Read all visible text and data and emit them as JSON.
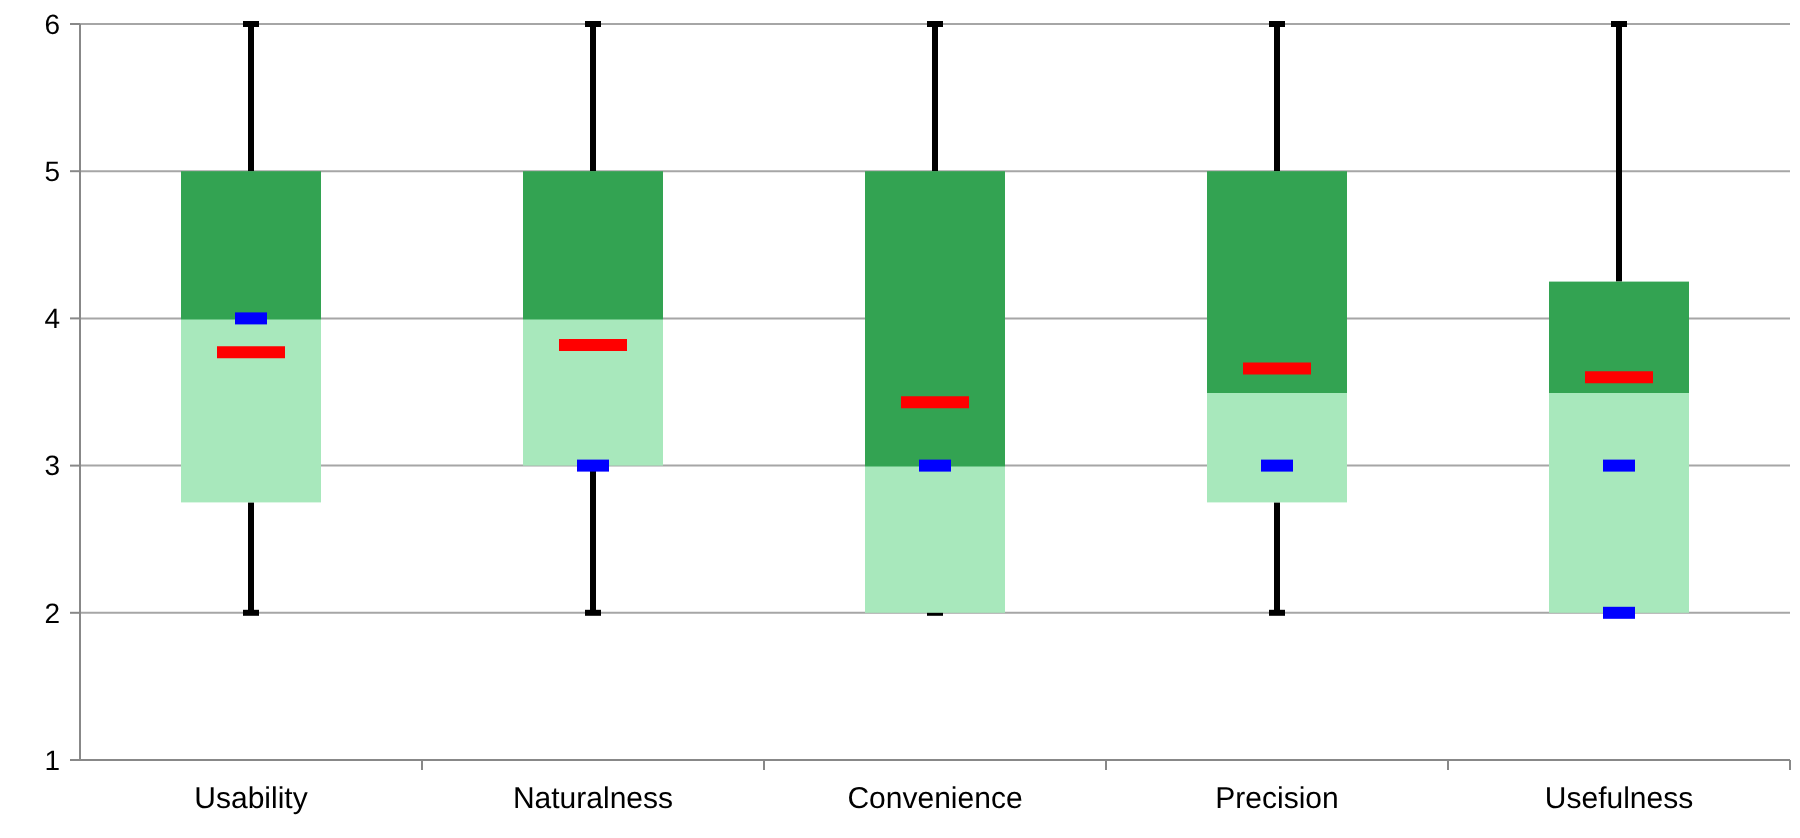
{
  "chart_data": {
    "type": "box",
    "categories": [
      "Usability",
      "Naturalness",
      "Convenience",
      "Precision",
      "Usefulness"
    ],
    "ylim": [
      1,
      6
    ],
    "yticks": [
      1,
      2,
      3,
      4,
      5,
      6
    ],
    "grid": "y",
    "colors": [
      "#a8e8bc",
      "#33a352"
    ],
    "series": [
      {
        "type": "box",
        "color": "#33a352",
        "boxes": [
          {
            "low": 2,
            "q1": 2.75,
            "median": 4,
            "q3": 5,
            "high": 6,
            "mean": 3.77
          },
          {
            "low": 2,
            "q1": 3,
            "median": 4,
            "q3": 5,
            "high": 6,
            "mean": 3.82
          },
          {
            "low": 2,
            "q1": 2,
            "median": 3,
            "q3": 5,
            "high": 6,
            "mean": 3.43
          },
          {
            "low": 2,
            "q1": 2.75,
            "median": 3.5,
            "q3": 5,
            "high": 6,
            "mean": 3.66
          },
          {
            "low": 2,
            "q1": 2,
            "median": 3.5,
            "q3": 4.25,
            "high": 6,
            "mean": 3.6
          }
        ]
      },
      {
        "type": "scatter",
        "color": "#0000ff",
        "x": [
          "Usability",
          "Naturalness",
          "Convenience",
          "Precision",
          "Usefulness",
          "Usefulness"
        ],
        "values": [
          4,
          3,
          3,
          3,
          3,
          2
        ]
      }
    ]
  }
}
